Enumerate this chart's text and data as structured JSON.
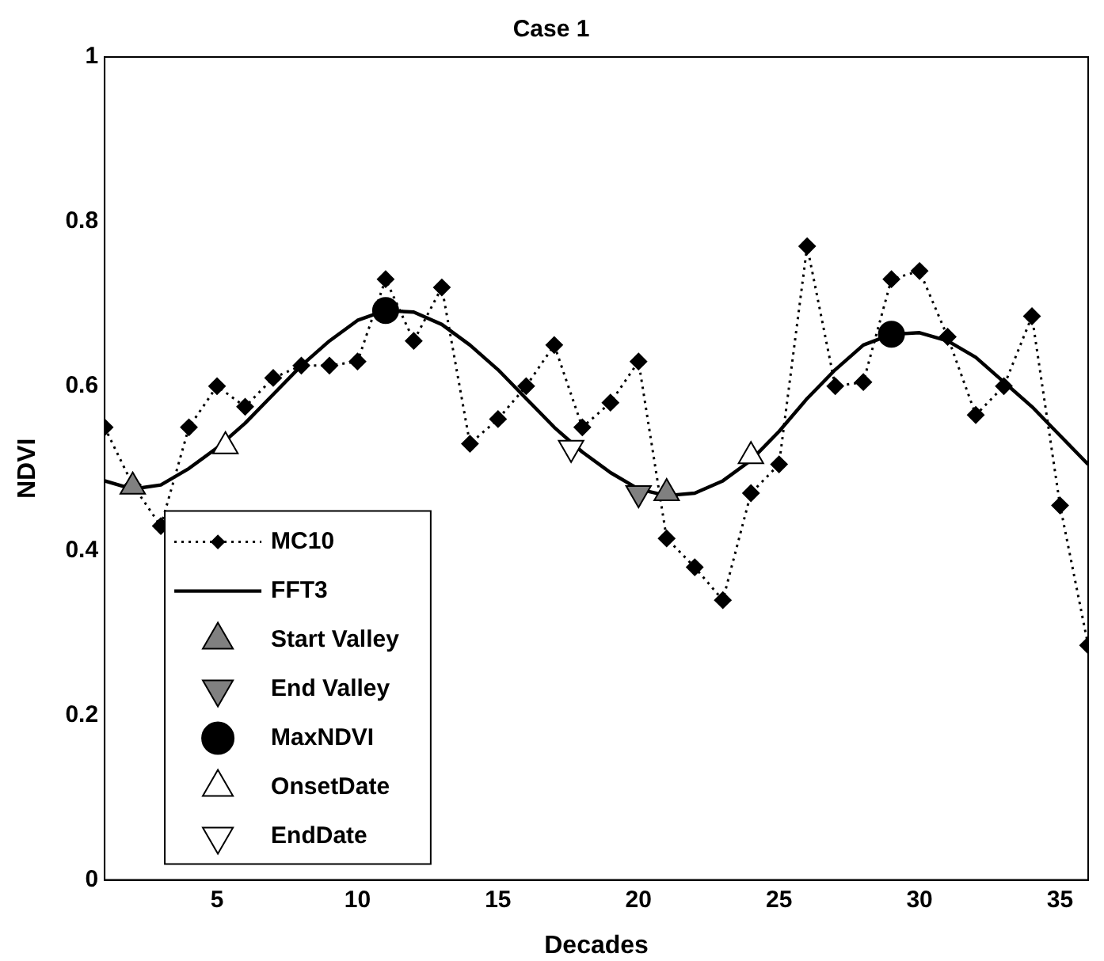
{
  "chart_data": {
    "type": "line",
    "title": "Case 1",
    "xlabel": "Decades",
    "ylabel": "NDVI",
    "xlim": [
      1,
      36
    ],
    "xticks": [
      5,
      10,
      15,
      20,
      25,
      30,
      35
    ],
    "ylim": [
      0,
      1
    ],
    "yticks": [
      0,
      0.2,
      0.4,
      0.6,
      0.8,
      1
    ],
    "grid": false,
    "legend": "bottom left",
    "series": [
      {
        "name": "MC10",
        "line_style": "dotted",
        "marker": "diamond",
        "color": "#000000",
        "x": [
          1,
          2,
          3,
          4,
          5,
          6,
          7,
          8,
          9,
          10,
          11,
          12,
          13,
          14,
          15,
          16,
          17,
          18,
          19,
          20,
          21,
          22,
          23,
          24,
          25,
          26,
          27,
          28,
          29,
          30,
          31,
          32,
          33,
          34,
          35,
          36
        ],
        "values": [
          0.55,
          0.48,
          0.43,
          0.55,
          0.6,
          0.575,
          0.61,
          0.625,
          0.625,
          0.63,
          0.73,
          0.655,
          0.72,
          0.53,
          0.56,
          0.6,
          0.65,
          0.55,
          0.58,
          0.63,
          0.415,
          0.38,
          0.34,
          0.47,
          0.505,
          0.77,
          0.6,
          0.605,
          0.73,
          0.74,
          0.66,
          0.565,
          0.6,
          0.685,
          0.455,
          0.285
        ]
      },
      {
        "name": "FFT3",
        "line_style": "solid",
        "marker": "none",
        "color": "#000000",
        "x": [
          1,
          2,
          3,
          4,
          5,
          6,
          7,
          8,
          9,
          10,
          11,
          12,
          13,
          14,
          15,
          16,
          17,
          18,
          19,
          20,
          21,
          22,
          23,
          24,
          25,
          26,
          27,
          28,
          29,
          30,
          31,
          32,
          33,
          34,
          35,
          36
        ],
        "values": [
          0.485,
          0.475,
          0.48,
          0.5,
          0.525,
          0.555,
          0.59,
          0.625,
          0.655,
          0.68,
          0.692,
          0.69,
          0.675,
          0.65,
          0.62,
          0.585,
          0.55,
          0.52,
          0.495,
          0.475,
          0.467,
          0.47,
          0.485,
          0.51,
          0.545,
          0.585,
          0.62,
          0.65,
          0.663,
          0.665,
          0.655,
          0.635,
          0.605,
          0.575,
          0.54,
          0.505
        ]
      },
      {
        "name": "Start Valley",
        "type": "scatter",
        "marker": "triangle",
        "color": "#808080",
        "x": [
          2,
          21
        ],
        "values": [
          0.478,
          0.47
        ]
      },
      {
        "name": "End Valley",
        "type": "scatter",
        "marker": "triangle-down",
        "color": "#808080",
        "x": [
          20
        ],
        "values": [
          0.47
        ]
      },
      {
        "name": "MaxNDVI",
        "type": "scatter",
        "marker": "circle",
        "color": "#000000",
        "x": [
          11,
          29
        ],
        "values": [
          0.692,
          0.663
        ]
      },
      {
        "name": "OnsetDate",
        "type": "scatter",
        "marker": "triangle",
        "color": "#ffffff",
        "x": [
          5.3,
          24
        ],
        "values": [
          0.527,
          0.515
        ]
      },
      {
        "name": "EndDate",
        "type": "scatter",
        "marker": "triangle-down",
        "color": "#ffffff",
        "x": [
          17.6
        ],
        "values": [
          0.525
        ]
      }
    ]
  }
}
